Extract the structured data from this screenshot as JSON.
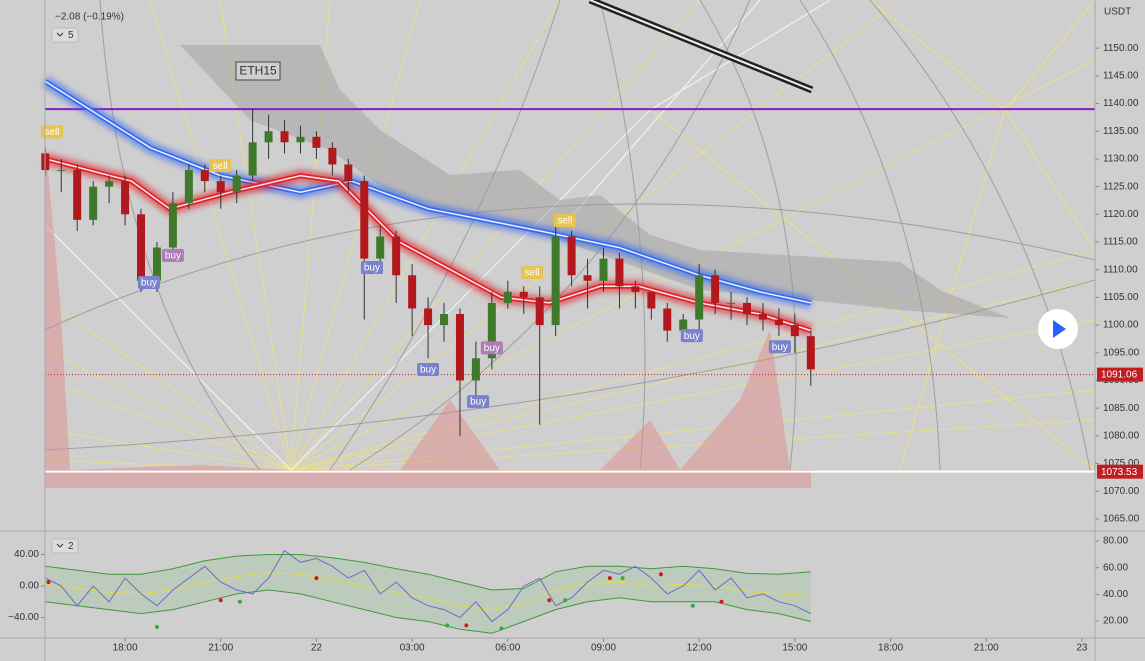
{
  "chart_data": [
    {
      "type": "candlestick",
      "header": "−2.08 (−0.19%)",
      "indicator_count": "5",
      "symbol_label": "ETH15",
      "currency": "USDT",
      "x": [
        15.5,
        16,
        16.5,
        17,
        17.5,
        18,
        18.5,
        19,
        19.5,
        20,
        20.5,
        21,
        21.5,
        22,
        22.5,
        23,
        23.5,
        24,
        24.5,
        25,
        25.5,
        26,
        26.5,
        27,
        27.5,
        28,
        28.5,
        29,
        29.5,
        30,
        30.5,
        31,
        31.5,
        32,
        32.5,
        33,
        33.5,
        34,
        34.5,
        35,
        35.5,
        36,
        36.5,
        37,
        37.5,
        38,
        38.5,
        39,
        39.5
      ],
      "open": [
        1131,
        1128,
        1128,
        1119,
        1125,
        1126,
        1120,
        1108,
        1114,
        1122,
        1128,
        1126,
        1124,
        1127,
        1133,
        1135,
        1133,
        1134,
        1132,
        1129,
        1126,
        1112,
        1116,
        1109,
        1103,
        1100,
        1102,
        1090,
        1094,
        1104,
        1106,
        1105,
        1100,
        1116,
        1109,
        1108,
        1112,
        1107,
        1106,
        1103,
        1099,
        1101,
        1109,
        1104,
        1104,
        1102,
        1101,
        1100,
        1098
      ],
      "high": [
        1132,
        1130,
        1129,
        1126,
        1127,
        1127,
        1121,
        1115,
        1124,
        1129,
        1129,
        1127,
        1128,
        1139,
        1138,
        1137,
        1136,
        1135,
        1133,
        1130,
        1127,
        1118,
        1117,
        1111,
        1105,
        1104,
        1103,
        1097,
        1106,
        1108,
        1107,
        1107,
        1119,
        1117,
        1112,
        1114,
        1113,
        1108,
        1106,
        1104,
        1102,
        1111,
        1110,
        1106,
        1105,
        1104,
        1103,
        1102,
        1099
      ],
      "low": [
        1127,
        1124,
        1117,
        1118,
        1122,
        1118,
        1106,
        1106,
        1112,
        1121,
        1124,
        1121,
        1122,
        1126,
        1130,
        1131,
        1131,
        1130,
        1127,
        1124,
        1101,
        1110,
        1104,
        1098,
        1094,
        1097,
        1080,
        1086,
        1092,
        1103,
        1102,
        1082,
        1098,
        1107,
        1103,
        1106,
        1103,
        1103,
        1101,
        1097,
        1097,
        1099,
        1102,
        1101,
        1100,
        1099,
        1098,
        1095,
        1089
      ],
      "close": [
        1128,
        1128,
        1119,
        1125,
        1126,
        1120,
        1108,
        1114,
        1122,
        1128,
        1126,
        1124,
        1127,
        1133,
        1135,
        1133,
        1134,
        1132,
        1129,
        1126,
        1112,
        1116,
        1109,
        1103,
        1100,
        1102,
        1090,
        1094,
        1104,
        1106,
        1105,
        1100,
        1116,
        1109,
        1108,
        1112,
        1107,
        1106,
        1103,
        1099,
        1101,
        1109,
        1104,
        1104,
        1102,
        1101,
        1100,
        1098,
        1092
      ],
      "up_color": "#3f7a2c",
      "down_color": "#b3191c",
      "series": [
        {
          "color": "#3a6cf0",
          "x": [
            15.5,
            18.8,
            21.0,
            23.5,
            25.1,
            27.5,
            31.0,
            33.5,
            36.0,
            37.9,
            39.5
          ],
          "values": [
            1144,
            1132,
            1127,
            1124,
            1126,
            1121,
            1117,
            1114,
            1109,
            1106,
            1104
          ]
        },
        {
          "color": "#e0242c",
          "x": [
            15.5,
            18.2,
            19.4,
            21.3,
            23.5,
            24.7,
            26.6,
            28.2,
            29.8,
            31.3,
            32.9,
            34.1,
            36.0,
            37.9,
            39.5
          ],
          "values": [
            1130,
            1126,
            1121,
            1124,
            1127,
            1126,
            1115,
            1110,
            1105,
            1104,
            1107,
            1107,
            1104,
            1102,
            1099
          ]
        }
      ],
      "hlines": [
        {
          "value": 1139,
          "color": "#8a18c8"
        }
      ],
      "price_tags": [
        {
          "value": 1091.06,
          "color": "#c01f22"
        },
        {
          "value": 1073.53,
          "color": "#c01f22"
        }
      ],
      "annotations": [
        {
          "text": "sell",
          "x": 15.71,
          "y": 1134.8,
          "color": "#e8c34d"
        },
        {
          "text": "sell",
          "x": 20.98,
          "y": 1128.7,
          "color": "#e8c34d"
        },
        {
          "text": "buy",
          "x": 18.75,
          "y": 1107.6,
          "color": "#7a82cc"
        },
        {
          "text": "buy",
          "x": 19.5,
          "y": 1112.5,
          "color": "#b07ab6"
        },
        {
          "text": "buy",
          "x": 25.74,
          "y": 1110.3,
          "color": "#7a82cc"
        },
        {
          "text": "buy",
          "x": 27.5,
          "y": 1091.9,
          "color": "#7a82cc"
        },
        {
          "text": "buy",
          "x": 29.07,
          "y": 1086.1,
          "color": "#7a82cc"
        },
        {
          "text": "buy",
          "x": 29.5,
          "y": 1095.8,
          "color": "#b07ab6"
        },
        {
          "text": "sell",
          "x": 30.76,
          "y": 1109.4,
          "color": "#e8c34d"
        },
        {
          "text": "sell",
          "x": 31.79,
          "y": 1118.8,
          "color": "#e8c34d"
        },
        {
          "text": "buy",
          "x": 35.77,
          "y": 1098.0,
          "color": "#7a82cc"
        },
        {
          "text": "buy",
          "x": 38.53,
          "y": 1096.0,
          "color": "#7a82cc"
        }
      ],
      "xlim": [
        15.49,
        48.41
      ],
      "xticks": [
        {
          "value": 18,
          "label": "18:00"
        },
        {
          "value": 21,
          "label": "21:00"
        },
        {
          "value": 24,
          "label": "22"
        },
        {
          "value": 27,
          "label": "03:00"
        },
        {
          "value": 30,
          "label": "06:00"
        },
        {
          "value": 33,
          "label": "09:00"
        },
        {
          "value": 36,
          "label": "12:00"
        },
        {
          "value": 39,
          "label": "15:00"
        },
        {
          "value": 42,
          "label": "18:00"
        },
        {
          "value": 45,
          "label": "21:00"
        },
        {
          "value": 48,
          "label": "23"
        }
      ],
      "ylim": [
        1063.0,
        1158.7
      ],
      "yticks": [
        {
          "value": 1065,
          "label": "1065.00"
        },
        {
          "value": 1070,
          "label": "1070.00"
        },
        {
          "value": 1075,
          "label": "1075.00"
        },
        {
          "value": 1080,
          "label": "1080.00"
        },
        {
          "value": 1085,
          "label": "1085.00"
        },
        {
          "value": 1090,
          "label": "1090.00"
        },
        {
          "value": 1095,
          "label": "1095.00"
        },
        {
          "value": 1100,
          "label": "1100.00"
        },
        {
          "value": 1105,
          "label": "1105.00"
        },
        {
          "value": 1110,
          "label": "1110.00"
        },
        {
          "value": 1115,
          "label": "1115.00"
        },
        {
          "value": 1120,
          "label": "1120.00"
        },
        {
          "value": 1125,
          "label": "1125.00"
        },
        {
          "value": 1130,
          "label": "1130.00"
        },
        {
          "value": 1135,
          "label": "1135.00"
        },
        {
          "value": 1140,
          "label": "1140.00"
        },
        {
          "value": 1145,
          "label": "1145.00"
        },
        {
          "value": 1150,
          "label": "1150.00"
        }
      ]
    },
    {
      "type": "line",
      "indicator_count": "2",
      "series": [
        {
          "color": "#7468c4",
          "x": [
            15.5,
            16,
            16.5,
            17,
            17.5,
            18,
            18.5,
            19,
            19.5,
            20,
            20.5,
            21,
            21.5,
            22,
            22.5,
            23,
            23.5,
            24,
            24.5,
            25,
            25.5,
            26,
            26.5,
            27,
            27.5,
            28,
            28.5,
            29,
            29.5,
            30,
            30.5,
            31,
            31.5,
            32,
            32.5,
            33,
            33.5,
            34,
            34.5,
            35,
            35.5,
            36,
            36.5,
            37,
            37.5,
            38,
            38.5,
            39,
            39.5
          ],
          "values": [
            10,
            0,
            -25,
            0,
            -20,
            10,
            -10,
            -25,
            -5,
            10,
            25,
            5,
            -5,
            -10,
            10,
            45,
            30,
            35,
            25,
            10,
            20,
            -10,
            5,
            -15,
            -25,
            -30,
            -40,
            -20,
            -45,
            -30,
            0,
            10,
            -25,
            -15,
            5,
            20,
            15,
            25,
            10,
            -10,
            0,
            20,
            -5,
            10,
            -15,
            -10,
            -20,
            -25,
            -35
          ]
        },
        {
          "color": "#3e9a3a",
          "x": [
            15.5,
            16.5,
            17.5,
            18.5,
            19.5,
            20.5,
            21.5,
            22.5,
            23.5,
            24.5,
            25.5,
            26.5,
            27.5,
            28.5,
            29.5,
            30.5,
            31.5,
            32.5,
            33.5,
            34.5,
            35.5,
            36.5,
            37.5,
            38.5,
            39.5
          ],
          "values": [
            25,
            20,
            15,
            15,
            22,
            32,
            38,
            40,
            40,
            36,
            30,
            22,
            15,
            5,
            -5,
            -3,
            18,
            25,
            25,
            22,
            25,
            22,
            16,
            15,
            18
          ]
        },
        {
          "color": "#3e9a3a",
          "x": [
            15.5,
            16.5,
            17.5,
            18.5,
            19.5,
            20.5,
            21.5,
            22.5,
            23.5,
            24.5,
            25.5,
            26.5,
            27.5,
            28.5,
            29.5,
            30.5,
            31.5,
            32.5,
            33.5,
            34.5,
            35.5,
            36.5,
            37.5,
            38.5,
            39.5
          ],
          "values": [
            -20,
            -25,
            -30,
            -35,
            -30,
            -20,
            -10,
            -5,
            -10,
            -20,
            -30,
            -40,
            -45,
            -55,
            -60,
            -45,
            -30,
            -20,
            -15,
            -20,
            -20,
            -20,
            -30,
            -35,
            -45
          ]
        },
        {
          "color": "#e6d84a",
          "x": [
            15.5,
            16.5,
            17.5,
            18.5,
            19.5,
            20.5,
            21.5,
            22.5,
            23.5,
            24.5,
            25.5,
            26.5,
            27.5,
            28.5,
            29.5,
            30.5,
            31.5,
            32.5,
            33.5,
            34.5,
            35.5,
            36.5,
            37.5,
            38.5,
            39.5
          ],
          "values": [
            2,
            -3,
            -8,
            -10,
            -5,
            5,
            12,
            17,
            15,
            8,
            0,
            -8,
            -15,
            -25,
            -30,
            -22,
            -5,
            3,
            5,
            0,
            2,
            0,
            -7,
            -10,
            -12
          ]
        }
      ],
      "dots": [
        {
          "color": "#c41e1e",
          "x": [
            15.6,
            21.0,
            24.0,
            28.7,
            31.3,
            33.2,
            34.8,
            36.7
          ],
          "values": [
            5,
            -18,
            10,
            -50,
            -18,
            10,
            15,
            -20
          ]
        },
        {
          "color": "#2fae2f",
          "x": [
            19.0,
            21.6,
            28.1,
            29.8,
            31.8,
            33.6,
            35.8
          ],
          "values": [
            -52,
            -20,
            -50,
            -54,
            -18,
            10,
            -25
          ]
        }
      ],
      "ylim": [
        -66.0,
        67.3
      ],
      "yticks": [
        {
          "value": -40,
          "label": "−40.00"
        },
        {
          "value": 0,
          "label": "0.00"
        },
        {
          "value": 40,
          "label": "40.00"
        }
      ],
      "y2lim": [
        7.3,
        86.0
      ],
      "y2ticks": [
        {
          "value": 20,
          "label": "20.00"
        },
        {
          "value": 40,
          "label": "40.00"
        },
        {
          "value": 60,
          "label": "60.00"
        },
        {
          "value": 80,
          "label": "80.00"
        }
      ]
    }
  ]
}
